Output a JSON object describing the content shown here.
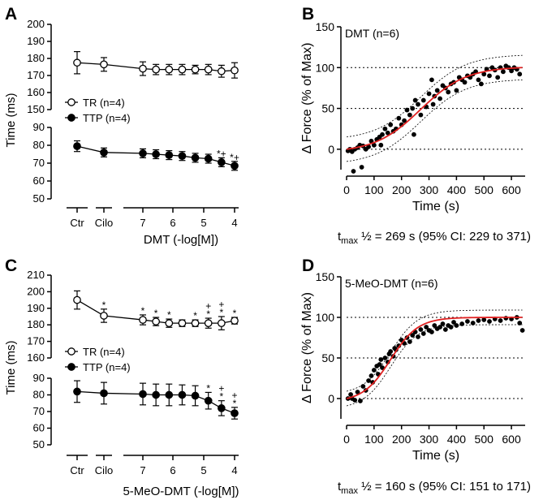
{
  "chart_data": [
    {
      "panel": "A",
      "type": "line",
      "ylabel": "Time (ms)",
      "xlabel": "DMT (-log[M])",
      "categories": [
        "Ctr",
        "Cilo",
        "7",
        "6",
        "5",
        "4"
      ],
      "upper_axis": {
        "ylim": [
          150,
          200
        ],
        "ticks": [
          150,
          160,
          170,
          180,
          190,
          200
        ]
      },
      "lower_axis": {
        "ylim": [
          50,
          90
        ],
        "ticks": [
          50,
          60,
          70,
          80,
          90
        ]
      },
      "legend": {
        "position": "middle-left",
        "entries": [
          "TR (n=4)",
          "TTP (n=4)"
        ]
      },
      "series": [
        {
          "name": "TR (n=4)",
          "marker": "open-circle",
          "axis": "upper",
          "x": [
            0,
            1,
            2.5,
            3,
            3.5,
            4,
            4.5,
            5,
            5.5,
            6
          ],
          "y": [
            177.5,
            176.5,
            174,
            173.5,
            173.5,
            173.5,
            173.5,
            173.5,
            172.5,
            173
          ],
          "err": [
            6.5,
            4,
            4,
            3,
            3,
            3,
            2.5,
            3,
            3.5,
            4.5
          ]
        },
        {
          "name": "TTP (n=4)",
          "marker": "filled-circle",
          "axis": "lower",
          "x": [
            0,
            1,
            2.5,
            3,
            3.5,
            4,
            4.5,
            5,
            5.5,
            6
          ],
          "y": [
            79.5,
            76,
            75.5,
            75,
            74.5,
            74,
            73,
            72.5,
            70.5,
            68.5
          ],
          "err": [
            3,
            2.5,
            2.5,
            2.5,
            2.5,
            2.5,
            2.5,
            2.5,
            2.5,
            2.5
          ]
        }
      ],
      "annotations": [
        {
          "text": "*+",
          "x": 5.5
        },
        {
          "text": "*+",
          "x": 6
        }
      ]
    },
    {
      "panel": "B",
      "type": "scatter",
      "title": "DMT (n=6)",
      "xlabel": "Time (s)",
      "ylabel": "Δ Force (% of Max)",
      "xlim": [
        0,
        650
      ],
      "ylim": [
        -25,
        150
      ],
      "xticks": [
        0,
        100,
        200,
        300,
        400,
        500,
        600
      ],
      "yticks": [
        0,
        50,
        100,
        150
      ],
      "reference_lines": [
        0,
        50,
        100
      ],
      "fit_t_half": 269,
      "caption": {
        "prefix": "t",
        "sub": "max",
        "rest": " ½ = 269 s (95% CI: 229 to 371)"
      },
      "points": [
        [
          5,
          -2
        ],
        [
          12,
          0
        ],
        [
          20,
          -3
        ],
        [
          25,
          -27
        ],
        [
          30,
          0
        ],
        [
          40,
          2
        ],
        [
          48,
          5
        ],
        [
          55,
          -22
        ],
        [
          60,
          4
        ],
        [
          70,
          0
        ],
        [
          80,
          3
        ],
        [
          90,
          10
        ],
        [
          100,
          5
        ],
        [
          110,
          12
        ],
        [
          120,
          15
        ],
        [
          125,
          5
        ],
        [
          130,
          18
        ],
        [
          140,
          25
        ],
        [
          150,
          20
        ],
        [
          160,
          30
        ],
        [
          170,
          22
        ],
        [
          180,
          25
        ],
        [
          190,
          38
        ],
        [
          200,
          30
        ],
        [
          210,
          35
        ],
        [
          220,
          48
        ],
        [
          230,
          42
        ],
        [
          240,
          50
        ],
        [
          245,
          18
        ],
        [
          250,
          60
        ],
        [
          260,
          55
        ],
        [
          270,
          42
        ],
        [
          280,
          60
        ],
        [
          290,
          52
        ],
        [
          300,
          68
        ],
        [
          310,
          85
        ],
        [
          315,
          55
        ],
        [
          320,
          65
        ],
        [
          330,
          72
        ],
        [
          340,
          62
        ],
        [
          350,
          78
        ],
        [
          360,
          75
        ],
        [
          370,
          70
        ],
        [
          380,
          80
        ],
        [
          390,
          82
        ],
        [
          400,
          72
        ],
        [
          410,
          88
        ],
        [
          420,
          85
        ],
        [
          430,
          82
        ],
        [
          440,
          90
        ],
        [
          450,
          88
        ],
        [
          460,
          92
        ],
        [
          470,
          95
        ],
        [
          480,
          85
        ],
        [
          490,
          80
        ],
        [
          500,
          92
        ],
        [
          510,
          98
        ],
        [
          520,
          90
        ],
        [
          530,
          100
        ],
        [
          540,
          97
        ],
        [
          550,
          88
        ],
        [
          560,
          100
        ],
        [
          570,
          95
        ],
        [
          580,
          102
        ],
        [
          590,
          100
        ],
        [
          600,
          96
        ],
        [
          610,
          100
        ],
        [
          620,
          98
        ],
        [
          630,
          92
        ]
      ]
    },
    {
      "panel": "C",
      "type": "line",
      "ylabel": "Time (ms)",
      "xlabel": "5-MeO-DMT (-log[M])",
      "categories": [
        "Ctr",
        "Cilo",
        "7",
        "6",
        "5",
        "4"
      ],
      "upper_axis": {
        "ylim": [
          160,
          210
        ],
        "ticks": [
          160,
          170,
          180,
          190,
          200,
          210
        ]
      },
      "lower_axis": {
        "ylim": [
          50,
          90
        ],
        "ticks": [
          50,
          60,
          70,
          80,
          90
        ]
      },
      "legend": {
        "position": "middle-left",
        "entries": [
          "TR (n=4)",
          "TTP (n=4)"
        ]
      },
      "series": [
        {
          "name": "TR (n=4)",
          "marker": "open-circle",
          "axis": "upper",
          "x": [
            0,
            1,
            2.5,
            3,
            3.5,
            4,
            4.5,
            5,
            5.5,
            6
          ],
          "y": [
            195,
            185.5,
            183,
            182,
            181,
            181,
            181,
            181,
            181,
            182.5
          ],
          "err": [
            5.5,
            4,
            3,
            2.5,
            2.5,
            2,
            2,
            3,
            4,
            2
          ]
        },
        {
          "name": "TTP (n=4)",
          "marker": "filled-circle",
          "axis": "lower",
          "x": [
            0,
            1,
            2.5,
            3,
            3.5,
            4,
            4.5,
            5,
            5.5,
            6
          ],
          "y": [
            82,
            81,
            80.5,
            80,
            80,
            80,
            79.5,
            76.5,
            72,
            69
          ],
          "err": [
            6.5,
            6.5,
            6.5,
            6.5,
            6.5,
            6,
            6,
            5,
            4.5,
            3.5
          ]
        }
      ],
      "annotations": [
        {
          "text": "*",
          "x": 1
        },
        {
          "text": "*",
          "x": 2.5
        },
        {
          "text": "*",
          "x": 3
        },
        {
          "text": "*",
          "x": 3.5
        },
        {
          "text": "*",
          "x": 4.5
        },
        {
          "text": "+",
          "x": 5
        },
        {
          "text": "*",
          "x": 5
        },
        {
          "text": "+",
          "x": 5.5
        },
        {
          "text": "*",
          "x": 5.5
        },
        {
          "text": "*",
          "x": 6
        },
        {
          "text": "*",
          "x": 5,
          "axis": "lower"
        },
        {
          "text": "+",
          "x": 5.5,
          "axis": "lower"
        },
        {
          "text": "*",
          "x": 5.5,
          "axis": "lower"
        },
        {
          "text": "+",
          "x": 6,
          "axis": "lower"
        },
        {
          "text": "*",
          "x": 6,
          "axis": "lower"
        }
      ]
    },
    {
      "panel": "D",
      "type": "scatter",
      "title": "5-MeO-DMT (n=6)",
      "xlabel": "Time (s)",
      "ylabel": "Δ Force (% of Max)",
      "xlim": [
        0,
        650
      ],
      "ylim": [
        -25,
        150
      ],
      "xticks": [
        0,
        100,
        200,
        300,
        400,
        500,
        600
      ],
      "yticks": [
        0,
        50,
        100,
        150
      ],
      "reference_lines": [
        0,
        50,
        100
      ],
      "fit_t_half": 160,
      "caption": {
        "prefix": "t",
        "sub": "max",
        "rest": " ½ = 160 s (95% CI: 151 to 171)"
      },
      "points": [
        [
          5,
          0
        ],
        [
          15,
          5
        ],
        [
          20,
          0
        ],
        [
          30,
          -2
        ],
        [
          40,
          8
        ],
        [
          50,
          -3
        ],
        [
          60,
          15
        ],
        [
          70,
          10
        ],
        [
          80,
          22
        ],
        [
          90,
          28
        ],
        [
          95,
          20
        ],
        [
          100,
          35
        ],
        [
          110,
          40
        ],
        [
          115,
          30
        ],
        [
          120,
          42
        ],
        [
          125,
          48
        ],
        [
          130,
          38
        ],
        [
          140,
          50
        ],
        [
          150,
          45
        ],
        [
          155,
          55
        ],
        [
          160,
          58
        ],
        [
          170,
          52
        ],
        [
          175,
          62
        ],
        [
          180,
          60
        ],
        [
          190,
          65
        ],
        [
          200,
          72
        ],
        [
          210,
          68
        ],
        [
          220,
          75
        ],
        [
          230,
          70
        ],
        [
          240,
          78
        ],
        [
          250,
          82
        ],
        [
          260,
          76
        ],
        [
          270,
          85
        ],
        [
          280,
          80
        ],
        [
          290,
          88
        ],
        [
          300,
          84
        ],
        [
          310,
          82
        ],
        [
          320,
          90
        ],
        [
          330,
          86
        ],
        [
          340,
          88
        ],
        [
          350,
          92
        ],
        [
          360,
          85
        ],
        [
          370,
          90
        ],
        [
          380,
          88
        ],
        [
          390,
          94
        ],
        [
          400,
          90
        ],
        [
          420,
          92
        ],
        [
          440,
          95
        ],
        [
          460,
          93
        ],
        [
          480,
          96
        ],
        [
          500,
          97
        ],
        [
          520,
          95
        ],
        [
          540,
          98
        ],
        [
          560,
          96
        ],
        [
          580,
          99
        ],
        [
          600,
          98
        ],
        [
          620,
          100
        ],
        [
          630,
          93
        ],
        [
          640,
          84
        ]
      ]
    }
  ],
  "panel_labels": [
    "A",
    "B",
    "C",
    "D"
  ]
}
